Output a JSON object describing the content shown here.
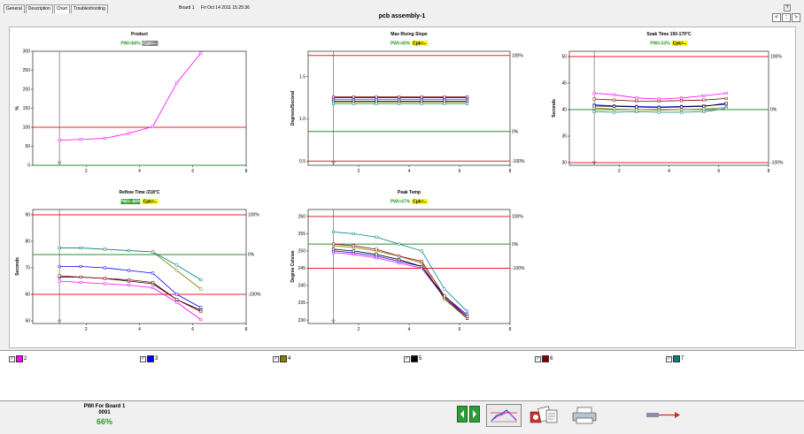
{
  "tabs": [
    "General",
    "Description",
    "Chart",
    "Troubleshooting"
  ],
  "active_tab": 2,
  "board_label": "Board 1",
  "timestamp": "Fri Oct 14 2011 15:25:36",
  "page_title": "pcb assembly-1",
  "help_label": "?",
  "nav": {
    "prev": "<",
    "center": "::",
    "next": ">"
  },
  "colors": {
    "limit": "#e8202a",
    "target": "#2e8b2e",
    "cursor": "#555555",
    "pwi_green": "#2a9c2a",
    "cpk_yellow": "#ffff00"
  },
  "series_legend": [
    {
      "name": "2",
      "color": "#ff00ff",
      "checked": true
    },
    {
      "name": "3",
      "color": "#0000ff",
      "checked": true
    },
    {
      "name": "4",
      "color": "#808000",
      "checked": true
    },
    {
      "name": "5",
      "color": "#000000",
      "checked": true
    },
    {
      "name": "6",
      "color": "#800000",
      "checked": true
    },
    {
      "name": "7",
      "color": "#008080",
      "checked": true
    }
  ],
  "pwi_panel": {
    "label": "PWI For Board 1",
    "board_id": "0001",
    "value": "66%"
  },
  "toolbar": [
    {
      "name": "prev-profile-button",
      "icon": "left-arrow-icon"
    },
    {
      "name": "next-profile-button",
      "icon": "right-arrow-icon"
    },
    {
      "name": "profile-view-button",
      "icon": "profile-graph-icon"
    },
    {
      "name": "report-button",
      "icon": "report-icon"
    },
    {
      "name": "print-button",
      "icon": "printer-icon"
    },
    {
      "name": "export-button",
      "icon": "arrow-export-icon"
    }
  ],
  "chart_data": [
    {
      "type": "line",
      "title": "Product",
      "pwi": "PWI=66%",
      "cpk": "Cpk=--",
      "cpk_highlight": false,
      "ylabel": "%",
      "xlabel": "",
      "xlim": [
        0,
        8
      ],
      "ylim": [
        0,
        300
      ],
      "xticks": [
        2,
        4,
        6,
        8
      ],
      "yticks": [
        0,
        50,
        100,
        150,
        200,
        250,
        300
      ],
      "ytick_labels": [
        "0",
        "50",
        "100",
        "150",
        "200",
        "250",
        "300"
      ],
      "upper_limit": 100,
      "lower_limit": 0,
      "target": 0,
      "right_labels": [],
      "cursor_x": 1,
      "series": [
        {
          "name": "2",
          "color": "#ff00ff",
          "x": [
            1,
            1.8,
            2.7,
            3.6,
            4.5,
            5.4,
            6.3
          ],
          "y": [
            66,
            68,
            71,
            84,
            102,
            217,
            295
          ]
        }
      ]
    },
    {
      "type": "line",
      "title": "Max Rising Slope",
      "pwi": "PWI=40%",
      "cpk": "Cpk=--",
      "cpk_highlight": true,
      "ylabel": "Degrees/Second",
      "xlabel": "",
      "xlim": [
        0,
        8
      ],
      "ylim": [
        0.45,
        1.8
      ],
      "xticks": [
        2,
        4,
        6,
        8
      ],
      "yticks": [
        0.5,
        1.0,
        1.5
      ],
      "ytick_labels": [
        "0.5",
        "1.0",
        "1.5"
      ],
      "upper_limit": 1.75,
      "lower_limit": 0.5,
      "target": 0.85,
      "right_labels": [
        {
          "y": 1.75,
          "text": "100%"
        },
        {
          "y": 0.85,
          "text": "0%"
        },
        {
          "y": 0.5,
          "text": "-100%"
        }
      ],
      "cursor_x": 1,
      "series": [
        {
          "name": "2",
          "color": "#ff00ff",
          "x": [
            1,
            1.8,
            2.7,
            3.6,
            4.5,
            5.4,
            6.3
          ],
          "y": [
            1.23,
            1.23,
            1.23,
            1.23,
            1.23,
            1.23,
            1.23
          ]
        },
        {
          "name": "3",
          "color": "#0000ff",
          "x": [
            1,
            1.8,
            2.7,
            3.6,
            4.5,
            5.4,
            6.3
          ],
          "y": [
            1.25,
            1.25,
            1.25,
            1.25,
            1.25,
            1.25,
            1.25
          ]
        },
        {
          "name": "4",
          "color": "#808000",
          "x": [
            1,
            1.8,
            2.7,
            3.6,
            4.5,
            5.4,
            6.3
          ],
          "y": [
            1.2,
            1.2,
            1.2,
            1.2,
            1.2,
            1.2,
            1.2
          ]
        },
        {
          "name": "5",
          "color": "#000000",
          "x": [
            1,
            1.8,
            2.7,
            3.6,
            4.5,
            5.4,
            6.3
          ],
          "y": [
            1.21,
            1.21,
            1.21,
            1.21,
            1.21,
            1.21,
            1.21
          ]
        },
        {
          "name": "6",
          "color": "#800000",
          "x": [
            1,
            1.8,
            2.7,
            3.6,
            4.5,
            5.4,
            6.3
          ],
          "y": [
            1.26,
            1.26,
            1.26,
            1.26,
            1.26,
            1.26,
            1.26
          ]
        },
        {
          "name": "7",
          "color": "#008080",
          "x": [
            1,
            1.8,
            2.7,
            3.6,
            4.5,
            5.4,
            6.3
          ],
          "y": [
            1.18,
            1.18,
            1.18,
            1.18,
            1.18,
            1.18,
            1.18
          ]
        }
      ]
    },
    {
      "type": "line",
      "title": "Soak Time 150-170°C",
      "pwi": "PWI=33%",
      "cpk": "Cpk=--",
      "cpk_highlight": true,
      "ylabel": "Seconds",
      "xlabel": "",
      "xlim": [
        0,
        8
      ],
      "ylim": [
        29.5,
        51
      ],
      "xticks": [
        2,
        4,
        6,
        8
      ],
      "yticks": [
        30,
        35,
        40,
        45,
        50
      ],
      "ytick_labels": [
        "30",
        "35",
        "40",
        "45",
        "50"
      ],
      "upper_limit": 50,
      "lower_limit": 30,
      "target": 40,
      "right_labels": [
        {
          "y": 50,
          "text": "100%"
        },
        {
          "y": 40,
          "text": "0%"
        },
        {
          "y": 30,
          "text": "-100%"
        }
      ],
      "cursor_x": 1,
      "series": [
        {
          "name": "2",
          "color": "#ff00ff",
          "x": [
            1,
            1.8,
            2.7,
            3.6,
            4.5,
            5.4,
            6.3
          ],
          "y": [
            43.1,
            42.8,
            42.2,
            42.0,
            42.2,
            42.6,
            43.1
          ]
        },
        {
          "name": "3",
          "color": "#0000ff",
          "x": [
            1,
            1.8,
            2.7,
            3.6,
            4.5,
            5.4,
            6.3
          ],
          "y": [
            40.9,
            40.7,
            40.6,
            40.5,
            40.6,
            40.7,
            41.0
          ]
        },
        {
          "name": "4",
          "color": "#808000",
          "x": [
            1,
            1.8,
            2.7,
            3.6,
            4.5,
            5.4,
            6.3
          ],
          "y": [
            40.3,
            40.1,
            40.0,
            39.9,
            40.0,
            40.1,
            40.4
          ]
        },
        {
          "name": "5",
          "color": "#000000",
          "x": [
            1,
            1.8,
            2.7,
            3.6,
            4.5,
            5.4,
            6.3
          ],
          "y": [
            40.7,
            40.6,
            40.5,
            40.4,
            40.5,
            40.6,
            41.2
          ]
        },
        {
          "name": "6",
          "color": "#800000",
          "x": [
            1,
            1.8,
            2.7,
            3.6,
            4.5,
            5.4,
            6.3
          ],
          "y": [
            42.0,
            41.8,
            41.6,
            41.6,
            41.7,
            41.8,
            42.1
          ]
        },
        {
          "name": "7",
          "color": "#008080",
          "x": [
            1,
            1.8,
            2.7,
            3.6,
            4.5,
            5.4,
            6.3
          ],
          "y": [
            39.6,
            39.5,
            39.6,
            39.5,
            39.5,
            39.6,
            40.2
          ]
        }
      ]
    },
    {
      "type": "line",
      "title": "Reflow Time /218°C",
      "pwi": "PWI=-66%",
      "cpk": "Cpk=--",
      "cpk_highlight": true,
      "ylabel": "Seconds",
      "xlabel": "",
      "xlim": [
        0,
        8
      ],
      "ylim": [
        49,
        92
      ],
      "xticks": [
        2,
        4,
        6,
        8
      ],
      "yticks": [
        50,
        60,
        70,
        80,
        90
      ],
      "ytick_labels": [
        "50",
        "60",
        "70",
        "80",
        "90"
      ],
      "upper_limit": 90,
      "lower_limit": 60,
      "target": 75,
      "right_labels": [
        {
          "y": 90,
          "text": "100%"
        },
        {
          "y": 75,
          "text": "0%"
        },
        {
          "y": 60,
          "text": "-100%"
        }
      ],
      "cursor_x": 1,
      "series": [
        {
          "name": "2",
          "color": "#ff00ff",
          "x": [
            1,
            1.8,
            2.7,
            3.6,
            4.5,
            5.4,
            6.3
          ],
          "y": [
            65,
            64.5,
            64,
            63.5,
            62.5,
            57,
            50.5
          ]
        },
        {
          "name": "3",
          "color": "#0000ff",
          "x": [
            1,
            1.8,
            2.7,
            3.6,
            4.5,
            5.4,
            6.3
          ],
          "y": [
            70.5,
            70.5,
            70,
            69,
            68,
            60,
            55
          ]
        },
        {
          "name": "4",
          "color": "#808000",
          "x": [
            1,
            1.8,
            2.7,
            3.6,
            4.5,
            5.4,
            6.3
          ],
          "y": [
            77.5,
            77.5,
            77,
            76.5,
            76,
            69,
            62
          ]
        },
        {
          "name": "5",
          "color": "#000000",
          "x": [
            1,
            1.8,
            2.7,
            3.6,
            4.5,
            5.4,
            6.3
          ],
          "y": [
            66.5,
            66.5,
            66,
            65,
            64,
            58,
            54
          ]
        },
        {
          "name": "6",
          "color": "#800000",
          "x": [
            1,
            1.8,
            2.7,
            3.6,
            4.5,
            5.4,
            6.3
          ],
          "y": [
            67,
            66.5,
            66,
            65.5,
            64.5,
            58,
            53.5
          ]
        },
        {
          "name": "7",
          "color": "#008080",
          "x": [
            1,
            1.8,
            2.7,
            3.6,
            4.5,
            5.4,
            6.3
          ],
          "y": [
            77.5,
            77.5,
            77,
            76.5,
            76,
            71,
            65.5
          ]
        }
      ]
    },
    {
      "type": "line",
      "title": "Peak Temp",
      "pwi": "PWI=47%",
      "cpk": "Cpk=--",
      "cpk_highlight": true,
      "ylabel": "Degree Celsius",
      "xlabel": "",
      "xlim": [
        0,
        8
      ],
      "ylim": [
        229,
        262
      ],
      "xticks": [
        2,
        4,
        6,
        8
      ],
      "yticks": [
        230,
        235,
        240,
        245,
        250,
        255,
        260
      ],
      "ytick_labels": [
        "230",
        "235",
        "240",
        "245",
        "250",
        "255",
        "260"
      ],
      "upper_limit": 260,
      "lower_limit": 245,
      "target": 252,
      "right_labels": [
        {
          "y": 260,
          "text": "100%"
        },
        {
          "y": 252,
          "text": "0%"
        },
        {
          "y": 245,
          "text": "-100%"
        }
      ],
      "cursor_x": 1,
      "series": [
        {
          "name": "2",
          "color": "#ff00ff",
          "x": [
            1,
            1.8,
            2.7,
            3.6,
            4.5,
            5.4,
            6.3
          ],
          "y": [
            249.5,
            249,
            248,
            246.5,
            245,
            236.5,
            231
          ]
        },
        {
          "name": "3",
          "color": "#0000ff",
          "x": [
            1,
            1.8,
            2.7,
            3.6,
            4.5,
            5.4,
            6.3
          ],
          "y": [
            250,
            249.5,
            248.5,
            247,
            245.5,
            237,
            231.5
          ]
        },
        {
          "name": "4",
          "color": "#808000",
          "x": [
            1,
            1.8,
            2.7,
            3.6,
            4.5,
            5.4,
            6.3
          ],
          "y": [
            251.5,
            251,
            250,
            248.5,
            246.5,
            236,
            230.5
          ]
        },
        {
          "name": "5",
          "color": "#000000",
          "x": [
            1,
            1.8,
            2.7,
            3.6,
            4.5,
            5.4,
            6.3
          ],
          "y": [
            250.5,
            250,
            249,
            247.5,
            245.5,
            236.5,
            230.5
          ]
        },
        {
          "name": "6",
          "color": "#800000",
          "x": [
            1,
            1.8,
            2.7,
            3.6,
            4.5,
            5.4,
            6.3
          ],
          "y": [
            252,
            251.5,
            250.5,
            248.5,
            247,
            237,
            231
          ]
        },
        {
          "name": "7",
          "color": "#008080",
          "x": [
            1,
            1.8,
            2.7,
            3.6,
            4.5,
            5.4,
            6.3
          ],
          "y": [
            255.5,
            255,
            254,
            252,
            250,
            239,
            232.5
          ]
        }
      ]
    }
  ]
}
